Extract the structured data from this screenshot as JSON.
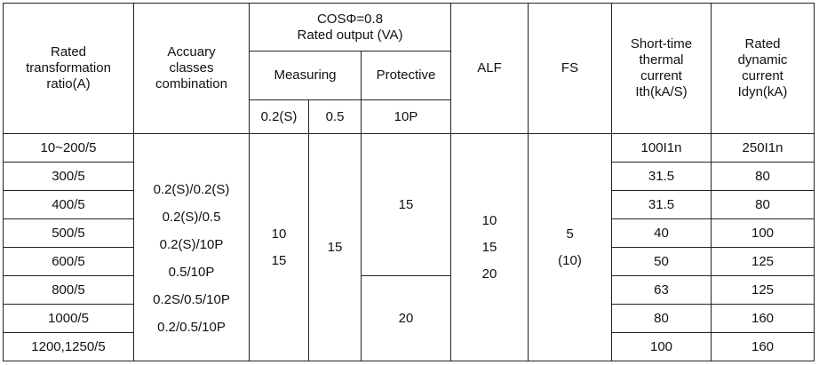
{
  "header": {
    "ratio": [
      "Rated",
      "transformation",
      "ratio(A)"
    ],
    "accuracy": [
      "Accuary",
      "classes",
      "combination"
    ],
    "rated_output": [
      "COSΦ=0.8",
      "Rated output (VA)"
    ],
    "measuring": "Measuring",
    "protective": "Protective",
    "classes": [
      "0.2(S)",
      "0.5",
      "10P"
    ],
    "alf": "ALF",
    "fs": "FS",
    "short_time": [
      "Short-time",
      "thermal",
      "current",
      "Ith(kA/S)"
    ],
    "dynamic": [
      "Rated",
      "dynamic",
      "current",
      "Idyn(kA)"
    ]
  },
  "rows": [
    {
      "ratio": "10~200/5",
      "short_time": "100I1n",
      "dynamic": "250I1n"
    },
    {
      "ratio": "300/5",
      "short_time": "31.5",
      "dynamic": "80"
    },
    {
      "ratio": "400/5",
      "short_time": "31.5",
      "dynamic": "80"
    },
    {
      "ratio": "500/5",
      "short_time": "40",
      "dynamic": "100"
    },
    {
      "ratio": "600/5",
      "short_time": "50",
      "dynamic": "125"
    },
    {
      "ratio": "800/5",
      "short_time": "63",
      "dynamic": "125"
    },
    {
      "ratio": "1000/5",
      "short_time": "80",
      "dynamic": "160"
    },
    {
      "ratio": "1200,1250/5",
      "short_time": "100",
      "dynamic": "160"
    }
  ],
  "accuracy_combinations": [
    "0.2(S)/0.2(S)",
    "0.2(S)/0.5",
    "0.2(S)/10P",
    "0.5/10P",
    "0.2S/0.5/10P",
    "0.2/0.5/10P"
  ],
  "measuring_02s": [
    "10",
    "15"
  ],
  "measuring_05": "15",
  "protective_10p": [
    "15",
    "20"
  ],
  "alf": [
    "10",
    "15",
    "20"
  ],
  "fs": [
    "5",
    "(10)"
  ]
}
